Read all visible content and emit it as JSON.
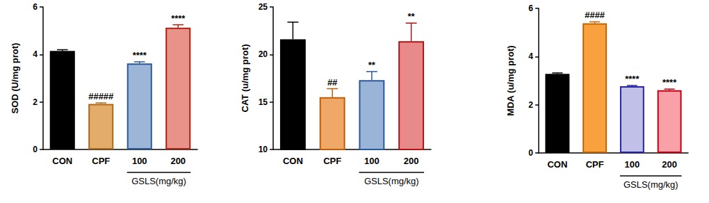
{
  "chart_data": [
    {
      "type": "bar",
      "y_label": "SOD (U/mg prot)",
      "categories": [
        "CON",
        "CPF",
        "100",
        "200"
      ],
      "values": [
        4.15,
        1.92,
        3.62,
        5.13
      ],
      "errors": [
        0.05,
        0.04,
        0.07,
        0.12
      ],
      "colors": [
        "#000000",
        "#E3AC6B",
        "#9DB5D6",
        "#E8928A"
      ],
      "annotations": [
        null,
        "#####",
        "****",
        "****"
      ],
      "group_label": {
        "text": "GSLS(mg/kg)",
        "categories": [
          "100",
          "200"
        ]
      },
      "ylim": [
        0,
        6
      ],
      "yticks": [
        0,
        2,
        4,
        6
      ],
      "grid": false
    },
    {
      "type": "bar",
      "y_label": "CAT (u/mg prot)",
      "categories": [
        "CON",
        "CPF",
        "100",
        "200"
      ],
      "values": [
        21.6,
        15.5,
        17.3,
        21.4
      ],
      "errors": [
        1.8,
        0.9,
        0.9,
        1.9
      ],
      "colors": [
        "#000000",
        "#F0A868",
        "#9AB4D8",
        "#E88A8A"
      ],
      "annotations": [
        null,
        "##",
        "**",
        "**"
      ],
      "group_label": {
        "text": "GSLS(mg/kg)",
        "categories": [
          "100",
          "200"
        ]
      },
      "ylim": [
        10,
        25
      ],
      "yticks": [
        10,
        15,
        20,
        25
      ],
      "grid": false
    },
    {
      "type": "bar",
      "y_label": "MDA (u/mg prot)",
      "categories": [
        "CON",
        "CPF",
        "100",
        "200"
      ],
      "values": [
        3.28,
        5.38,
        2.77,
        2.6
      ],
      "errors": [
        0.04,
        0.06,
        0.03,
        0.05
      ],
      "colors": [
        "#000000",
        "#F9A03F",
        "#C0C0E8",
        "#F9A0A8"
      ],
      "annotations": [
        null,
        "####",
        "****",
        "****"
      ],
      "group_label": {
        "text": "GSLS(mg/kg)",
        "categories": [
          "100",
          "200"
        ]
      },
      "ylim": [
        0,
        6
      ],
      "yticks": [
        0,
        2,
        4,
        6
      ],
      "grid": false
    }
  ]
}
